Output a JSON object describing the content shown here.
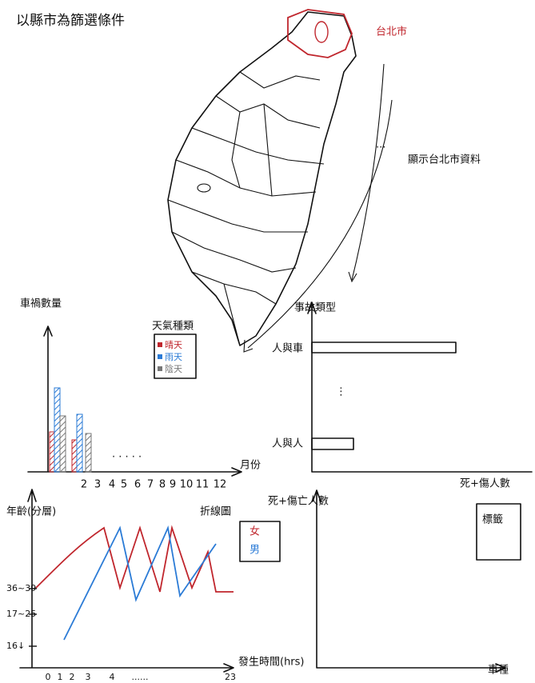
{
  "header": {
    "title": "以縣市為篩選條件"
  },
  "map": {
    "selected": "台北市",
    "note": "顯示台北市資料"
  },
  "bar_chart": {
    "y_label": "車禍數量",
    "x_label": "月份",
    "months": [
      "2",
      "3",
      "4",
      "5",
      "6",
      "7",
      "8",
      "9",
      "10",
      "11",
      "12"
    ],
    "legend": {
      "title": "天氣種類",
      "items": [
        "晴天",
        "雨天",
        "陰天"
      ]
    }
  },
  "accident_type_chart": {
    "title": "事故類型",
    "categories": [
      "人與車",
      "人與人"
    ]
  },
  "line_chart": {
    "title": "折線圖",
    "y_label": "年齡(分層)",
    "y_labels": [
      "36~39",
      "17~25",
      "16↓"
    ],
    "x_label": "發生時間(hrs)",
    "x_labels": [
      "0",
      "1",
      "2",
      "3",
      "4",
      "......",
      "23"
    ],
    "legend": [
      "女",
      "男"
    ]
  },
  "casualty_chart": {
    "y_label": "死+傷亡人數",
    "x_label": "車種"
  },
  "casualty_count": {
    "title": "死+傷人數",
    "label": "標籤"
  }
}
